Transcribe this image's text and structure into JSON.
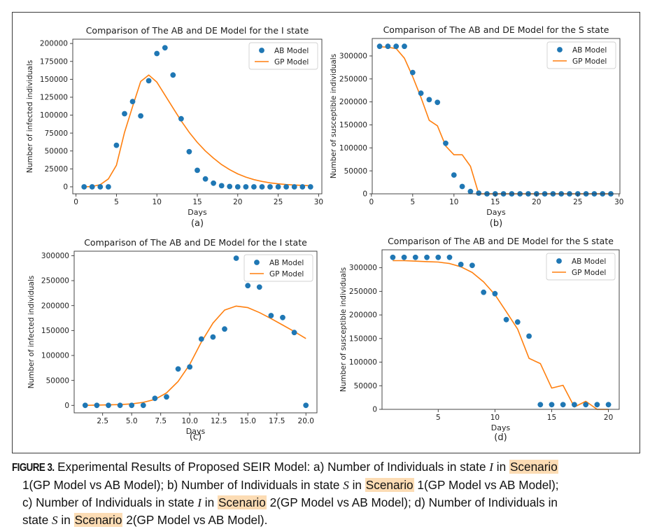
{
  "caption": {
    "lead": "FIGURE 3.",
    "l1a": " Experimental Results of Proposed SEIR Model: a) Number of Individuals in state ",
    "l1b": "I",
    "l1c": " in ",
    "l1hl": "Scenario",
    "l2a": "1(GP Model vs AB Model); b) Number of Individuals in state ",
    "l2b": "S",
    "l2c": " in ",
    "l2hl": "Scenario",
    "l2d": " 1(GP Model vs AB Model);",
    "l3a": "c) Number of Individuals in state ",
    "l3b": "I",
    "l3c": " in ",
    "l3hl": "Scenario",
    "l3d": " 2(GP Model vs AB Model); d) Number of Individuals in",
    "l4a": "state ",
    "l4b": "S",
    "l4c": " in ",
    "l4hl": "Scenario",
    "l4d": " 2(GP Model vs AB Model)."
  },
  "colors": {
    "ab": "#1f77b4",
    "gp": "#ff7f0e",
    "highlight": "#fcdcb4"
  },
  "chart_data": [
    {
      "type": "line+scatter",
      "panel_label": "(a)",
      "title": "Comparison of The AB and DE Model for the I state",
      "xlabel": "Days",
      "ylabel": "Number of infected individuals",
      "xlim": [
        -0.4,
        30.4
      ],
      "ylim": [
        -9800,
        206000
      ],
      "xticks": [
        0,
        5,
        10,
        15,
        20,
        25,
        30
      ],
      "xtick_labels": [
        "0",
        "5",
        "10",
        "15",
        "20",
        "25",
        "30"
      ],
      "yticks": [
        0,
        25000,
        50000,
        75000,
        100000,
        125000,
        150000,
        175000,
        200000
      ],
      "ytick_labels": [
        "0",
        "25000",
        "50000",
        "75000",
        "100000",
        "125000",
        "150000",
        "175000",
        "200000"
      ],
      "legend": "top-right",
      "series": [
        {
          "name": "AB Model",
          "kind": "scatter",
          "x": [
            1,
            2,
            3,
            4,
            5,
            6,
            7,
            8,
            9,
            10,
            11,
            12,
            13,
            14,
            15,
            16,
            17,
            18,
            19,
            20,
            21,
            22,
            23,
            24,
            25,
            26,
            27,
            28,
            29
          ],
          "y": [
            0,
            0,
            0,
            0,
            58000,
            102000,
            119000,
            99000,
            148000,
            186000,
            194000,
            156000,
            95000,
            49000,
            23000,
            11000,
            5000,
            1500,
            500,
            0,
            0,
            0,
            0,
            0,
            0,
            0,
            0,
            0,
            0
          ]
        },
        {
          "name": "GP Model",
          "kind": "line",
          "x": [
            1,
            2,
            3,
            4,
            5,
            6,
            7,
            8,
            9,
            10,
            11,
            12,
            13,
            14,
            15,
            16,
            17,
            18,
            19,
            20,
            21,
            22,
            23,
            24,
            25,
            26,
            27,
            28,
            29
          ],
          "y": [
            0,
            500,
            3000,
            11000,
            30000,
            76000,
            112000,
            147000,
            156000,
            146000,
            128000,
            110000,
            92000,
            76000,
            62000,
            50000,
            40000,
            31000,
            24000,
            18000,
            13500,
            10000,
            7500,
            5500,
            4200,
            3200,
            2500,
            2000,
            1500
          ]
        }
      ]
    },
    {
      "type": "line+scatter",
      "panel_label": "(b)",
      "title": "Comparison of The AB and DE Model for the S state",
      "xlabel": "Days",
      "ylabel": "Number of susceptible individuals",
      "xlim": [
        0.1,
        30.1
      ],
      "ylim": [
        0,
        338000
      ],
      "xticks": [
        0,
        5,
        10,
        15,
        20,
        25,
        30
      ],
      "xtick_labels": [
        "0",
        "5",
        "10",
        "15",
        "20",
        "25",
        "30"
      ],
      "yticks": [
        0,
        50000,
        100000,
        150000,
        200000,
        250000,
        300000
      ],
      "ytick_labels": [
        "0",
        "50000",
        "100000",
        "150000",
        "200000",
        "250000",
        "300000"
      ],
      "legend": "top-right",
      "series": [
        {
          "name": "AB Model",
          "kind": "scatter",
          "x": [
            1,
            2,
            3,
            4,
            5,
            6,
            7,
            8,
            9,
            10,
            11,
            12,
            13,
            14,
            15,
            16,
            17,
            18,
            19,
            20,
            21,
            22,
            23,
            24,
            25,
            26,
            27,
            28,
            29
          ],
          "y": [
            321000,
            321000,
            321000,
            321000,
            264000,
            219000,
            205000,
            199000,
            110000,
            41000,
            16000,
            5000,
            1500,
            0,
            0,
            0,
            0,
            0,
            0,
            0,
            0,
            0,
            0,
            0,
            0,
            0,
            0,
            0,
            0
          ]
        },
        {
          "name": "GP Model",
          "kind": "line",
          "x": [
            1,
            2,
            3,
            4,
            5,
            6,
            7,
            8,
            9,
            10,
            11,
            12,
            13,
            14,
            15,
            16,
            17,
            18,
            19,
            20,
            21,
            22,
            23,
            24,
            25,
            26,
            27,
            28,
            29
          ],
          "y": [
            320000,
            319000,
            316000,
            295000,
            255000,
            210000,
            160000,
            148000,
            104000,
            85000,
            85000,
            60000,
            0,
            0,
            0,
            0,
            0,
            0,
            0,
            0,
            0,
            0,
            0,
            0,
            0,
            0,
            0,
            0,
            0
          ]
        }
      ]
    },
    {
      "type": "line+scatter",
      "panel_label": "(c)",
      "title": "Comparison of The AB and DE Model for the I state",
      "xlabel": "Days",
      "ylabel": "Number of infected individuals",
      "xlim": [
        0.05,
        20.95
      ],
      "ylim": [
        -15000,
        309000
      ],
      "xticks": [
        2.5,
        5.0,
        7.5,
        10.0,
        12.5,
        15.0,
        17.5,
        20.0
      ],
      "xtick_labels": [
        "2.5",
        "5.0",
        "7.5",
        "10.0",
        "12.5",
        "15.0",
        "17.5",
        "20.0"
      ],
      "yticks": [
        0,
        50000,
        100000,
        150000,
        200000,
        250000,
        300000
      ],
      "ytick_labels": [
        "0",
        "50000",
        "100000",
        "150000",
        "200000",
        "250000",
        "300000"
      ],
      "legend": "top-right",
      "series": [
        {
          "name": "AB Model",
          "kind": "scatter",
          "x": [
            1,
            2,
            3,
            4,
            5,
            6,
            7,
            8,
            9,
            10,
            11,
            12,
            13,
            14,
            15,
            16,
            17,
            18,
            19,
            20
          ],
          "y": [
            0,
            0,
            0,
            0,
            0,
            0,
            14000,
            17000,
            73000,
            77000,
            133000,
            137000,
            153000,
            295000,
            240000,
            237000,
            180000,
            176000,
            146000,
            0
          ]
        },
        {
          "name": "GP Model",
          "kind": "line",
          "x": [
            1,
            2,
            3,
            4,
            5,
            6,
            7,
            8,
            9,
            10,
            11,
            12,
            13,
            14,
            15,
            16,
            17,
            18,
            19,
            20
          ],
          "y": [
            0,
            500,
            1000,
            1500,
            3000,
            6000,
            12000,
            25000,
            48000,
            82000,
            127000,
            165000,
            191000,
            199000,
            196000,
            186000,
            174000,
            161000,
            148000,
            134000
          ]
        }
      ]
    },
    {
      "type": "line+scatter",
      "panel_label": "(d)",
      "title": "Comparison of The AB and DE Model for the S state",
      "xlabel": "Days",
      "ylabel": "Number of susceptible individuals",
      "xlim": [
        0.05,
        20.95
      ],
      "ylim": [
        0,
        338000
      ],
      "xticks": [
        5,
        10,
        15,
        20
      ],
      "xtick_labels": [
        "5",
        "10",
        "15",
        "20"
      ],
      "yticks": [
        0,
        50000,
        100000,
        150000,
        200000,
        250000,
        300000
      ],
      "ytick_labels": [
        "0",
        "50000",
        "100000",
        "150000",
        "200000",
        "250000",
        "300000"
      ],
      "legend": "top-right",
      "series": [
        {
          "name": "AB Model",
          "kind": "scatter",
          "x": [
            1,
            2,
            3,
            4,
            5,
            6,
            7,
            8,
            9,
            10,
            11,
            12,
            13,
            14,
            15,
            16,
            17,
            18,
            19,
            20
          ],
          "y": [
            322000,
            322000,
            322000,
            322000,
            322000,
            322000,
            307000,
            305000,
            248000,
            245000,
            190000,
            185000,
            155000,
            10000,
            10000,
            10000,
            10000,
            10000,
            10000,
            10000
          ]
        },
        {
          "name": "GP Model",
          "kind": "line",
          "x": [
            1,
            2,
            3,
            4,
            5,
            6,
            7,
            8,
            9,
            10,
            11,
            12,
            13,
            14,
            15,
            16,
            17,
            18,
            19,
            20
          ],
          "y": [
            315000,
            315000,
            314000,
            313000,
            312000,
            309000,
            302000,
            290000,
            270000,
            243000,
            207000,
            170000,
            108000,
            97000,
            45000,
            51000,
            5000,
            17000,
            0,
            0
          ]
        }
      ]
    }
  ]
}
